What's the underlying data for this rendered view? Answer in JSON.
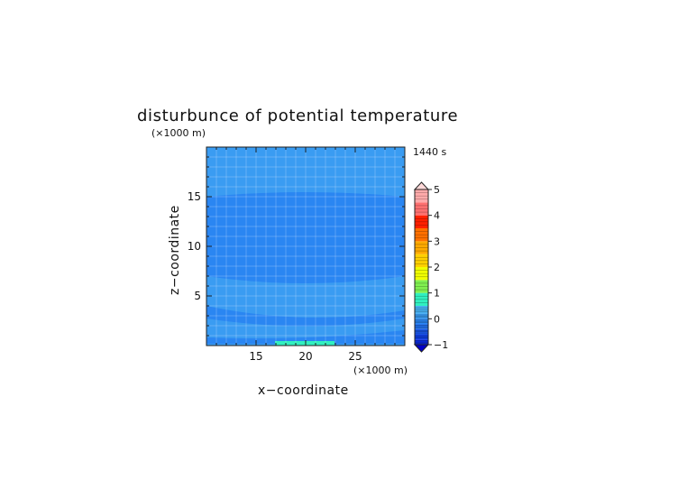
{
  "chart_data": {
    "type": "heatmap",
    "title": "disturbunce of potential temperature",
    "time_label": "1440 s",
    "xlabel": "x−coordinate",
    "ylabel": "z−coordinate",
    "x_unit": "(×1000 m)",
    "y_unit": "(×1000 m)",
    "xlim": [
      10,
      30
    ],
    "ylim": [
      0,
      20
    ],
    "x_ticks": [
      15,
      20,
      25
    ],
    "y_ticks": [
      5,
      10,
      15
    ],
    "grid": true,
    "colorbar": {
      "ticks": [
        -1,
        0,
        1,
        2,
        3,
        4,
        5
      ],
      "levels": [
        {
          "from": -1,
          "to": -0.8,
          "color": "#0a2be0"
        },
        {
          "from": -0.8,
          "to": -0.6,
          "color": "#1040e6"
        },
        {
          "from": -0.6,
          "to": -0.4,
          "color": "#1a58ea"
        },
        {
          "from": -0.4,
          "to": -0.2,
          "color": "#2070ee"
        },
        {
          "from": -0.2,
          "to": 0,
          "color": "#2a86f2"
        },
        {
          "from": 0,
          "to": 0.2,
          "color": "#3a9cf2"
        },
        {
          "from": 0.2,
          "to": 0.5,
          "color": "#48b0f0"
        },
        {
          "from": 0.5,
          "to": 1,
          "color": "#30f0c0"
        },
        {
          "from": 1,
          "to": 1.5,
          "color": "#80f050"
        },
        {
          "from": 1.5,
          "to": 2,
          "color": "#f0ff00"
        },
        {
          "from": 2,
          "to": 2.5,
          "color": "#ffd000"
        },
        {
          "from": 2.5,
          "to": 3,
          "color": "#ffaa00"
        },
        {
          "from": 3,
          "to": 3.5,
          "color": "#ff7000"
        },
        {
          "from": 3.5,
          "to": 4,
          "color": "#ff2000"
        },
        {
          "from": 4,
          "to": 4.5,
          "color": "#ff7070"
        },
        {
          "from": 4.5,
          "to": 5,
          "color": "#ffaaaa"
        }
      ],
      "under_color": "#0000c8",
      "over_color": "#ffd8d8"
    },
    "fields": [
      {
        "region": "z 0 to 20 (background)",
        "value_range": [
          0,
          0.2
        ],
        "color": "#3a9cf2"
      },
      {
        "region": "band centered z≈0.8, bowing up to z≈2 at x=30",
        "value_range": [
          -0.2,
          0
        ],
        "color": "#2a86f2"
      },
      {
        "region": "band z 2.2–4 at center (bowing to z≈3.6)",
        "value_range": [
          -0.2,
          0
        ],
        "color": "#2a86f2"
      },
      {
        "region": "main cold region z≈6.3–15.2",
        "value_range": [
          -0.2,
          0
        ],
        "color": "#2a86f2"
      },
      {
        "region": "surface bubble x≈17–23, z 0–0.4",
        "value_range": [
          0.5,
          1
        ],
        "color": "#30f0c0"
      }
    ]
  }
}
